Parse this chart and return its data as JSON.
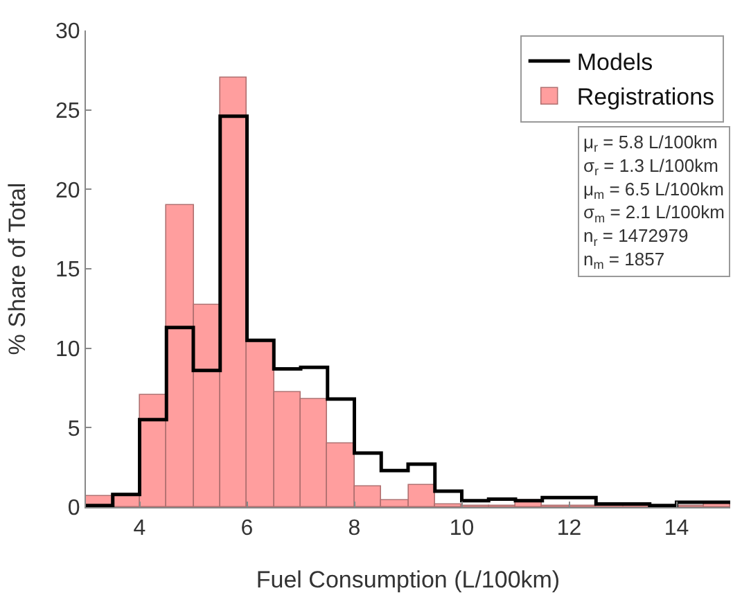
{
  "chart_data": {
    "type": "histogram",
    "xlabel": "Fuel Consumption (L/100km)",
    "ylabel": "% Share of Total",
    "bins": [
      3,
      3.5,
      4,
      4.5,
      5,
      5.5,
      6,
      6.5,
      7,
      7.5,
      8,
      8.5,
      9,
      9.5,
      10,
      10.5,
      11,
      11.5,
      12,
      12.5,
      13,
      13.5,
      14,
      14.5,
      15
    ],
    "series": [
      {
        "name": "Registrations",
        "type": "histogram",
        "color": "#ff9e9e",
        "values": [
          0.7,
          0.8,
          7.1,
          19.0,
          12.7,
          27.0,
          10.4,
          7.2,
          6.8,
          4.0,
          1.3,
          0.4,
          1.4,
          0.2,
          0.1,
          0.1,
          0.4,
          0.1,
          0.1,
          0.1,
          0.1,
          0.1,
          0.1,
          0.3
        ]
      },
      {
        "name": "Models",
        "type": "step",
        "color": "#000000",
        "x": [
          3,
          3.5,
          4,
          4.5,
          5,
          5.5,
          6,
          6.5,
          7,
          7.5,
          8,
          8.5,
          9,
          9.5,
          10,
          10.5,
          11,
          11.5,
          12,
          12.5,
          13,
          13.5,
          14,
          14.5,
          15
        ],
        "values": [
          0.1,
          0.8,
          5.5,
          11.3,
          8.6,
          24.6,
          10.5,
          8.7,
          8.8,
          6.8,
          3.4,
          2.3,
          2.7,
          1.0,
          0.4,
          0.5,
          0.4,
          0.6,
          0.6,
          0.2,
          0.2,
          0.1,
          0.3,
          0.3,
          0.3
        ]
      }
    ],
    "xlim": [
      3,
      15
    ],
    "xticks": [
      4,
      6,
      8,
      10,
      12,
      14
    ],
    "ylim": [
      0,
      30
    ],
    "yticks": [
      0,
      5,
      10,
      15,
      20,
      25,
      30
    ],
    "grid": false,
    "legend": "top right",
    "annotations": [
      "μ$_{r}$ = 5.8 L/100km",
      "σ$_{r}$ = 1.3 L/100km",
      "μ$_{m}$ = 6.5 L/100km",
      "σ$_{m}$ = 2.1 L/100km",
      "n$_{r}$ = 1472979",
      "n$_{m}$ = 1857"
    ]
  }
}
